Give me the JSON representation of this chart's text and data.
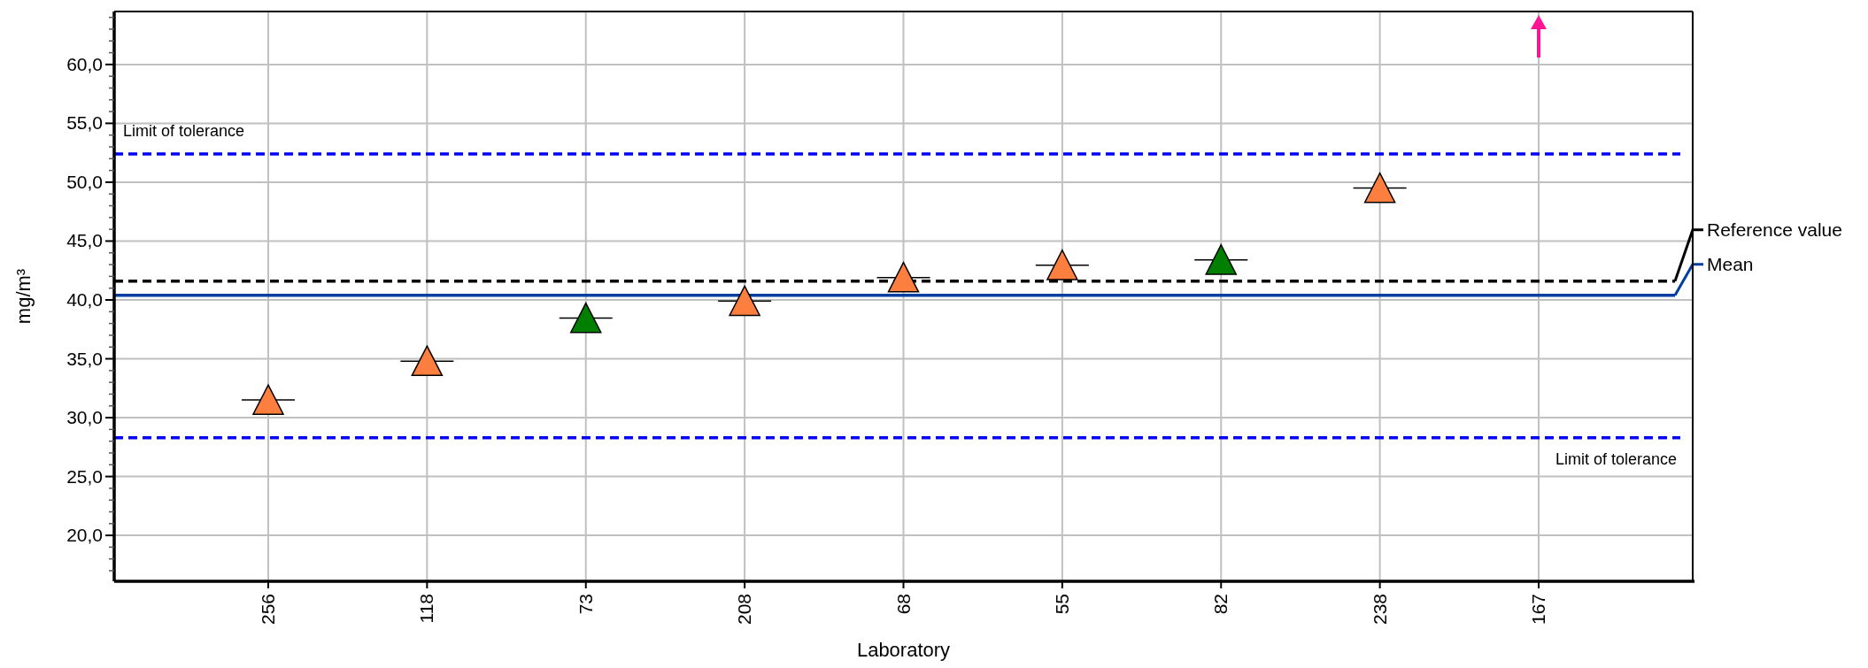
{
  "chart_data": {
    "type": "scatter",
    "xlabel": "Laboratory",
    "ylabel": "mg/m³",
    "categories": [
      "256",
      "118",
      "73",
      "208",
      "68",
      "55",
      "82",
      "238",
      "167"
    ],
    "series": [
      {
        "values": [
          31.5,
          34.8,
          38.45,
          39.9,
          41.9,
          42.95,
          43.4,
          49.5,
          null
        ],
        "colors": [
          "#fd7f3f",
          "#fd7f3f",
          "#007f00",
          "#fd7f3f",
          "#fd7f3f",
          "#fd7f3f",
          "#007f00",
          "#fd7f3f",
          "#ff1493"
        ]
      }
    ],
    "ylim": [
      16.1,
      64.5
    ],
    "yticks": [
      {
        "value": 17,
        "label": null
      },
      {
        "value": 18,
        "label": null
      },
      {
        "value": 19,
        "label": null
      },
      {
        "value": 20,
        "label": "20,0"
      },
      {
        "value": 21,
        "label": null
      },
      {
        "value": 22,
        "label": null
      },
      {
        "value": 23,
        "label": null
      },
      {
        "value": 24,
        "label": null
      },
      {
        "value": 25,
        "label": "25,0"
      },
      {
        "value": 26,
        "label": null
      },
      {
        "value": 27,
        "label": null
      },
      {
        "value": 28,
        "label": null
      },
      {
        "value": 29,
        "label": null
      },
      {
        "value": 30,
        "label": "30,0"
      },
      {
        "value": 31,
        "label": null
      },
      {
        "value": 32,
        "label": null
      },
      {
        "value": 33,
        "label": null
      },
      {
        "value": 34,
        "label": null
      },
      {
        "value": 35,
        "label": "35,0"
      },
      {
        "value": 36,
        "label": null
      },
      {
        "value": 37,
        "label": null
      },
      {
        "value": 38,
        "label": null
      },
      {
        "value": 39,
        "label": null
      },
      {
        "value": 40,
        "label": "40,0"
      },
      {
        "value": 41,
        "label": null
      },
      {
        "value": 42,
        "label": null
      },
      {
        "value": 43,
        "label": null
      },
      {
        "value": 44,
        "label": null
      },
      {
        "value": 45,
        "label": "45,0"
      },
      {
        "value": 46,
        "label": null
      },
      {
        "value": 47,
        "label": null
      },
      {
        "value": 48,
        "label": null
      },
      {
        "value": 49,
        "label": null
      },
      {
        "value": 50,
        "label": "50,0"
      },
      {
        "value": 51,
        "label": null
      },
      {
        "value": 52,
        "label": null
      },
      {
        "value": 53,
        "label": null
      },
      {
        "value": 54,
        "label": null
      },
      {
        "value": 55,
        "label": "55,0"
      },
      {
        "value": 56,
        "label": null
      },
      {
        "value": 57,
        "label": null
      },
      {
        "value": 58,
        "label": null
      },
      {
        "value": 59,
        "label": null
      },
      {
        "value": 60,
        "label": "60,0"
      },
      {
        "value": 61,
        "label": null
      },
      {
        "value": 62,
        "label": null
      },
      {
        "value": 63,
        "label": null
      },
      {
        "value": 64,
        "label": null
      }
    ],
    "ref_lines": [
      {
        "axis": "y",
        "value": 52.4,
        "label": "Limit of tolerance",
        "color": "#0000ff",
        "line_style": "dashed"
      },
      {
        "axis": "y",
        "value": 28.3,
        "label": "Limit of tolerance",
        "color": "#0000ff",
        "line_style": "dashed"
      },
      {
        "axis": "y",
        "value": 41.6,
        "label": "Reference value",
        "color": "#000000",
        "line_style": "dashed"
      },
      {
        "axis": "y",
        "value": 40.4,
        "label": "Mean",
        "color": "#003f9f",
        "line_style": "solid"
      }
    ],
    "grid": true,
    "marker": "triangle"
  }
}
